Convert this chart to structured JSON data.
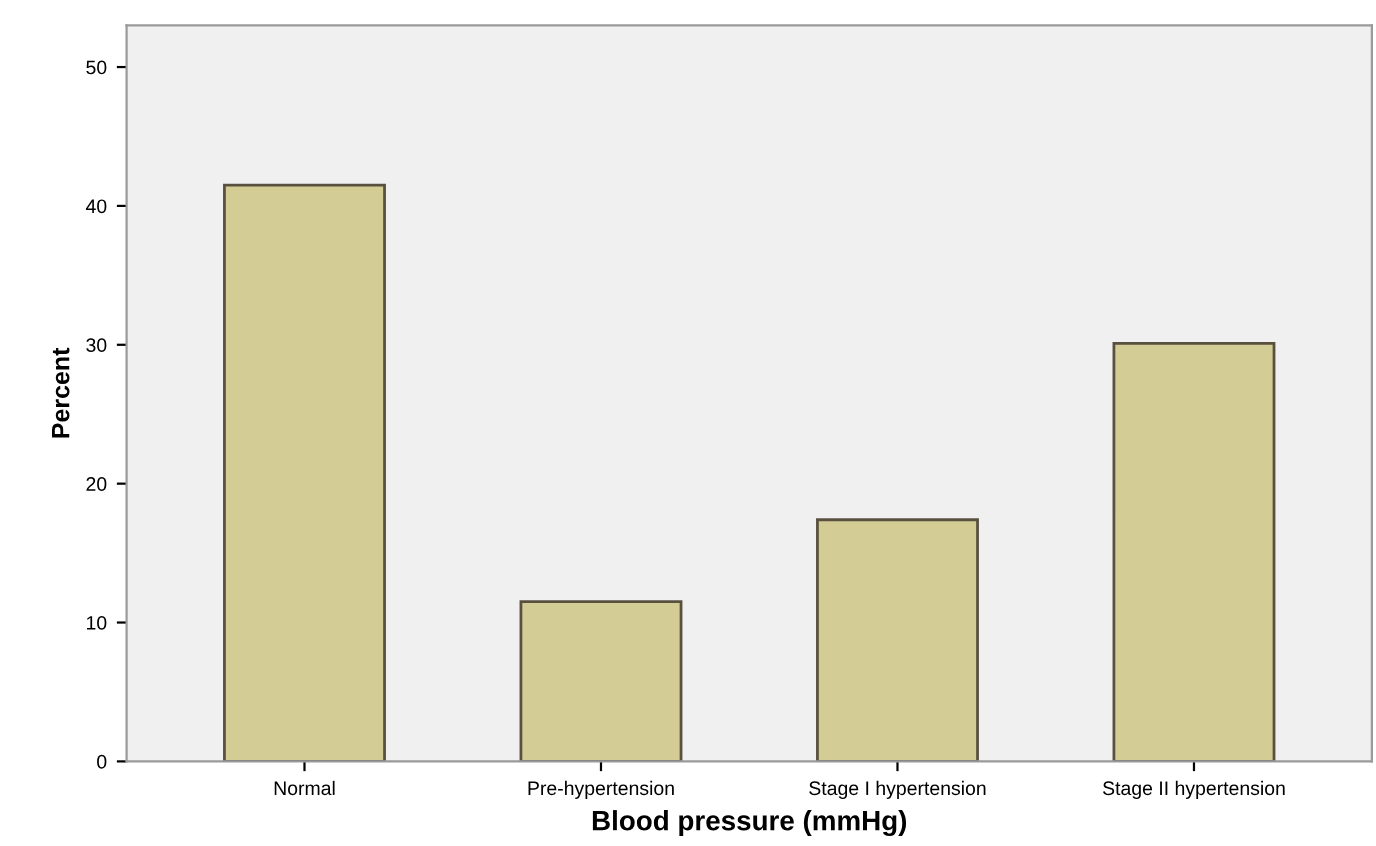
{
  "chart_data": {
    "type": "bar",
    "xlabel": "Blood pressure (mmHg)",
    "ylabel": "Percent",
    "categories": [
      "Normal",
      "Pre-hypertension",
      "Stage I hypertension",
      "Stage II hypertension"
    ],
    "values": [
      41.5,
      11.5,
      17.4,
      30.1
    ],
    "color": "#d3cd95",
    "ylim": [
      0,
      53
    ],
    "yticks": [
      0,
      10,
      20,
      30,
      40,
      50
    ],
    "grid": false,
    "legend": false
  }
}
